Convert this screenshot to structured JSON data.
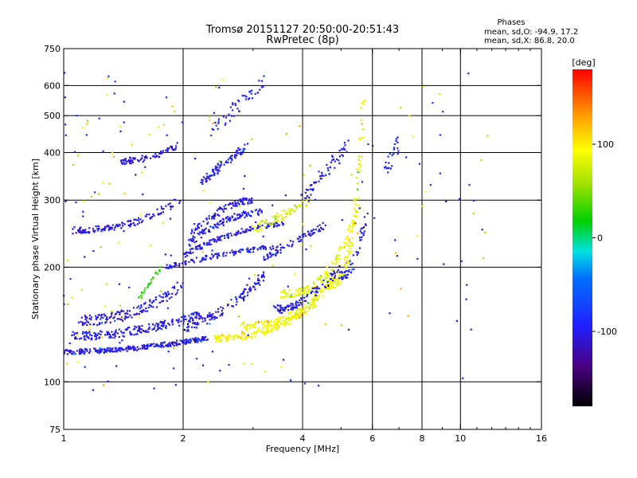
{
  "header": {
    "title_line1": "Tromsø 20151127 20:50:00-20:51:43",
    "title_line2": "RwPretec (8p)",
    "stats_title": "Phases",
    "stats_o": "mean, sd,O: -94.9, 17.2",
    "stats_x": "mean, sd,X:  86.8, 20.0"
  },
  "colors": {
    "grid": "#000000",
    "background": "#ffffff"
  },
  "colorbar": {
    "unit_label": "[deg]",
    "range": [
      -180,
      180
    ],
    "ticks": [
      {
        "value": 100,
        "label": "100"
      },
      {
        "value": 0,
        "label": "0"
      },
      {
        "value": -100,
        "label": "-100"
      }
    ]
  },
  "chart_data": {
    "type": "scatter",
    "title": "Tromsø 20151127 20:50:00-20:51:43",
    "subtitle": "RwPretec (8p)",
    "xlabel": "Frequency [MHz]",
    "ylabel": "Stationary phase Virtual Height [km]",
    "x_scale": "log",
    "y_scale": "log",
    "xlim": [
      1,
      16
    ],
    "ylim": [
      75,
      750
    ],
    "x_ticks": [
      {
        "value": 1,
        "label": "1"
      },
      {
        "value": 2,
        "label": "2"
      },
      {
        "value": 4,
        "label": "4"
      },
      {
        "value": 6,
        "label": "6"
      },
      {
        "value": 8,
        "label": "8"
      },
      {
        "value": 10,
        "label": "10"
      },
      {
        "value": 16,
        "label": "16"
      }
    ],
    "x_minor_ticks": [
      3,
      5,
      7,
      9,
      11,
      12,
      13,
      14,
      15
    ],
    "x_grid": [
      2,
      4,
      6,
      8,
      10
    ],
    "y_ticks": [
      {
        "value": 75,
        "label": "75"
      },
      {
        "value": 100,
        "label": "100"
      },
      {
        "value": 200,
        "label": "200"
      },
      {
        "value": 300,
        "label": "300"
      },
      {
        "value": 400,
        "label": "400"
      },
      {
        "value": 500,
        "label": "500"
      },
      {
        "value": 600,
        "label": "600"
      },
      {
        "value": 750,
        "label": "750"
      }
    ],
    "y_grid": [
      100,
      200,
      300,
      400,
      500,
      600
    ],
    "grid": true,
    "color_variable": "phase [deg]",
    "traces": [
      {
        "f0": 1.0,
        "f1": 2.3,
        "h0": 120,
        "h1": 130,
        "curve": 0.8,
        "phase": -100,
        "count": 260,
        "spread": 0.03
      },
      {
        "f0": 1.05,
        "f1": 2.2,
        "h0": 132,
        "h1": 150,
        "curve": 1.0,
        "phase": -98,
        "count": 200,
        "spread": 0.05
      },
      {
        "f0": 1.1,
        "f1": 2.0,
        "h0": 145,
        "h1": 180,
        "curve": 1.2,
        "phase": -102,
        "count": 150,
        "spread": 0.06
      },
      {
        "f0": 1.05,
        "f1": 1.95,
        "h0": 250,
        "h1": 300,
        "curve": 1.4,
        "phase": -105,
        "count": 130,
        "spread": 0.04
      },
      {
        "f0": 1.4,
        "f1": 1.95,
        "h0": 380,
        "h1": 420,
        "curve": 1.0,
        "phase": -103,
        "count": 80,
        "spread": 0.04
      },
      {
        "f0": 1.8,
        "f1": 3.5,
        "h0": 200,
        "h1": 225,
        "curve": -0.5,
        "phase": -100,
        "count": 120,
        "spread": 0.03
      },
      {
        "f0": 2.0,
        "f1": 3.6,
        "h0": 215,
        "h1": 260,
        "curve": -0.7,
        "phase": -100,
        "count": 130,
        "spread": 0.03
      },
      {
        "f0": 2.05,
        "f1": 3.2,
        "h0": 230,
        "h1": 280,
        "curve": -0.8,
        "phase": -98,
        "count": 110,
        "spread": 0.04
      },
      {
        "f0": 2.1,
        "f1": 3.0,
        "h0": 245,
        "h1": 300,
        "curve": -0.8,
        "phase": -100,
        "count": 90,
        "spread": 0.04
      },
      {
        "f0": 2.2,
        "f1": 2.9,
        "h0": 330,
        "h1": 420,
        "curve": 0.0,
        "phase": -95,
        "count": 90,
        "spread": 0.05
      },
      {
        "f0": 2.3,
        "f1": 3.2,
        "h0": 440,
        "h1": 620,
        "curve": 0.0,
        "phase": -95,
        "count": 45,
        "spread": 0.08
      },
      {
        "f0": 2.0,
        "f1": 3.2,
        "h0": 140,
        "h1": 190,
        "curve": 0.6,
        "phase": -100,
        "count": 120,
        "spread": 0.06
      },
      {
        "f0": 2.4,
        "f1": 4.3,
        "h0": 130,
        "h1": 160,
        "curve": 1.2,
        "phase": 95,
        "count": 160,
        "spread": 0.04
      },
      {
        "f0": 2.8,
        "f1": 5.0,
        "h0": 140,
        "h1": 200,
        "curve": 1.5,
        "phase": 88,
        "count": 170,
        "spread": 0.05
      },
      {
        "f0": 3.5,
        "f1": 5.6,
        "h0": 170,
        "h1": 300,
        "curve": 1.8,
        "phase": 86,
        "count": 150,
        "spread": 0.05
      },
      {
        "f0": 4.6,
        "f1": 5.7,
        "h0": 180,
        "h1": 560,
        "curve": 2.5,
        "phase": 85,
        "count": 140,
        "spread": 0.05
      },
      {
        "f0": 3.0,
        "f1": 4.2,
        "h0": 250,
        "h1": 300,
        "curve": 0.0,
        "phase": 80,
        "count": 70,
        "spread": 0.05
      },
      {
        "f0": 3.4,
        "f1": 5.0,
        "h0": 155,
        "h1": 200,
        "curve": 0.8,
        "phase": -100,
        "count": 100,
        "spread": 0.05
      },
      {
        "f0": 3.2,
        "f1": 4.6,
        "h0": 210,
        "h1": 260,
        "curve": 0.0,
        "phase": -98,
        "count": 70,
        "spread": 0.04
      },
      {
        "f0": 4.0,
        "f1": 5.2,
        "h0": 300,
        "h1": 420,
        "curve": 0.0,
        "phase": -100,
        "count": 60,
        "spread": 0.08
      },
      {
        "f0": 5.0,
        "f1": 5.8,
        "h0": 190,
        "h1": 280,
        "curve": 1.2,
        "phase": -100,
        "count": 50,
        "spread": 0.05
      },
      {
        "f0": 6.5,
        "f1": 7.0,
        "h0": 360,
        "h1": 430,
        "curve": 0.0,
        "phase": -90,
        "count": 25,
        "spread": 0.06
      },
      {
        "f0": 1.55,
        "f1": 1.75,
        "h0": 165,
        "h1": 200,
        "curve": 0.0,
        "phase": 25,
        "count": 25,
        "spread": 0.03
      }
    ],
    "scatter_noise": {
      "count": 220,
      "f0": 1.0,
      "f1": 12.0,
      "h0": 95,
      "h1": 650
    }
  }
}
